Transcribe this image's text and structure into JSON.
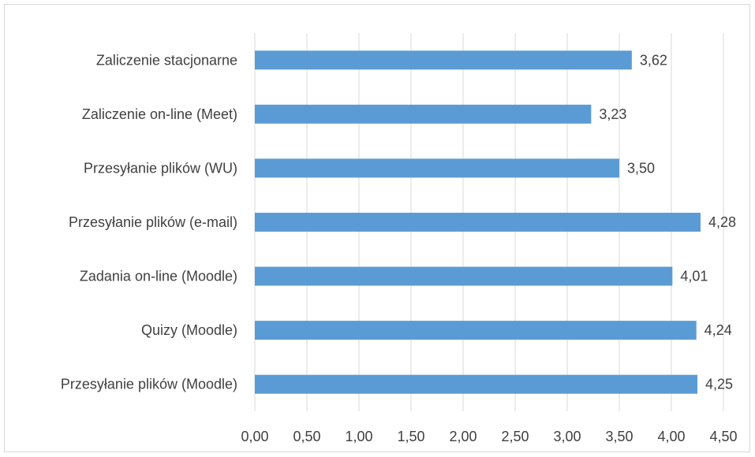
{
  "chart_data": {
    "type": "bar",
    "orientation": "horizontal",
    "title": "",
    "xlabel": "",
    "ylabel": "",
    "categories": [
      "Zaliczenie stacjonarne",
      "Zaliczenie on-line (Meet)",
      "Przesyłanie plików (WU)",
      "Przesyłanie plików (e-mail)",
      "Zadania on-line (Moodle)",
      "Quizy (Moodle)",
      "Przesyłanie plików (Moodle)"
    ],
    "values": [
      3.62,
      3.23,
      3.5,
      4.28,
      4.01,
      4.24,
      4.25
    ],
    "value_labels": [
      "3,62",
      "3,23",
      "3,50",
      "4,28",
      "4,01",
      "4,24",
      "4,25"
    ],
    "xlim": [
      0,
      4.5
    ],
    "x_ticks": [
      0,
      0.5,
      1,
      1.5,
      2,
      2.5,
      3,
      3.5,
      4,
      4.5
    ],
    "x_tick_labels": [
      "0,00",
      "0,50",
      "1,00",
      "1,50",
      "2,00",
      "2,50",
      "3,00",
      "3,50",
      "4,00",
      "4,50"
    ],
    "grid": "vertical",
    "legend": "none",
    "bar_color": "#5b9bd5",
    "grid_color": "#d9d9d9"
  }
}
